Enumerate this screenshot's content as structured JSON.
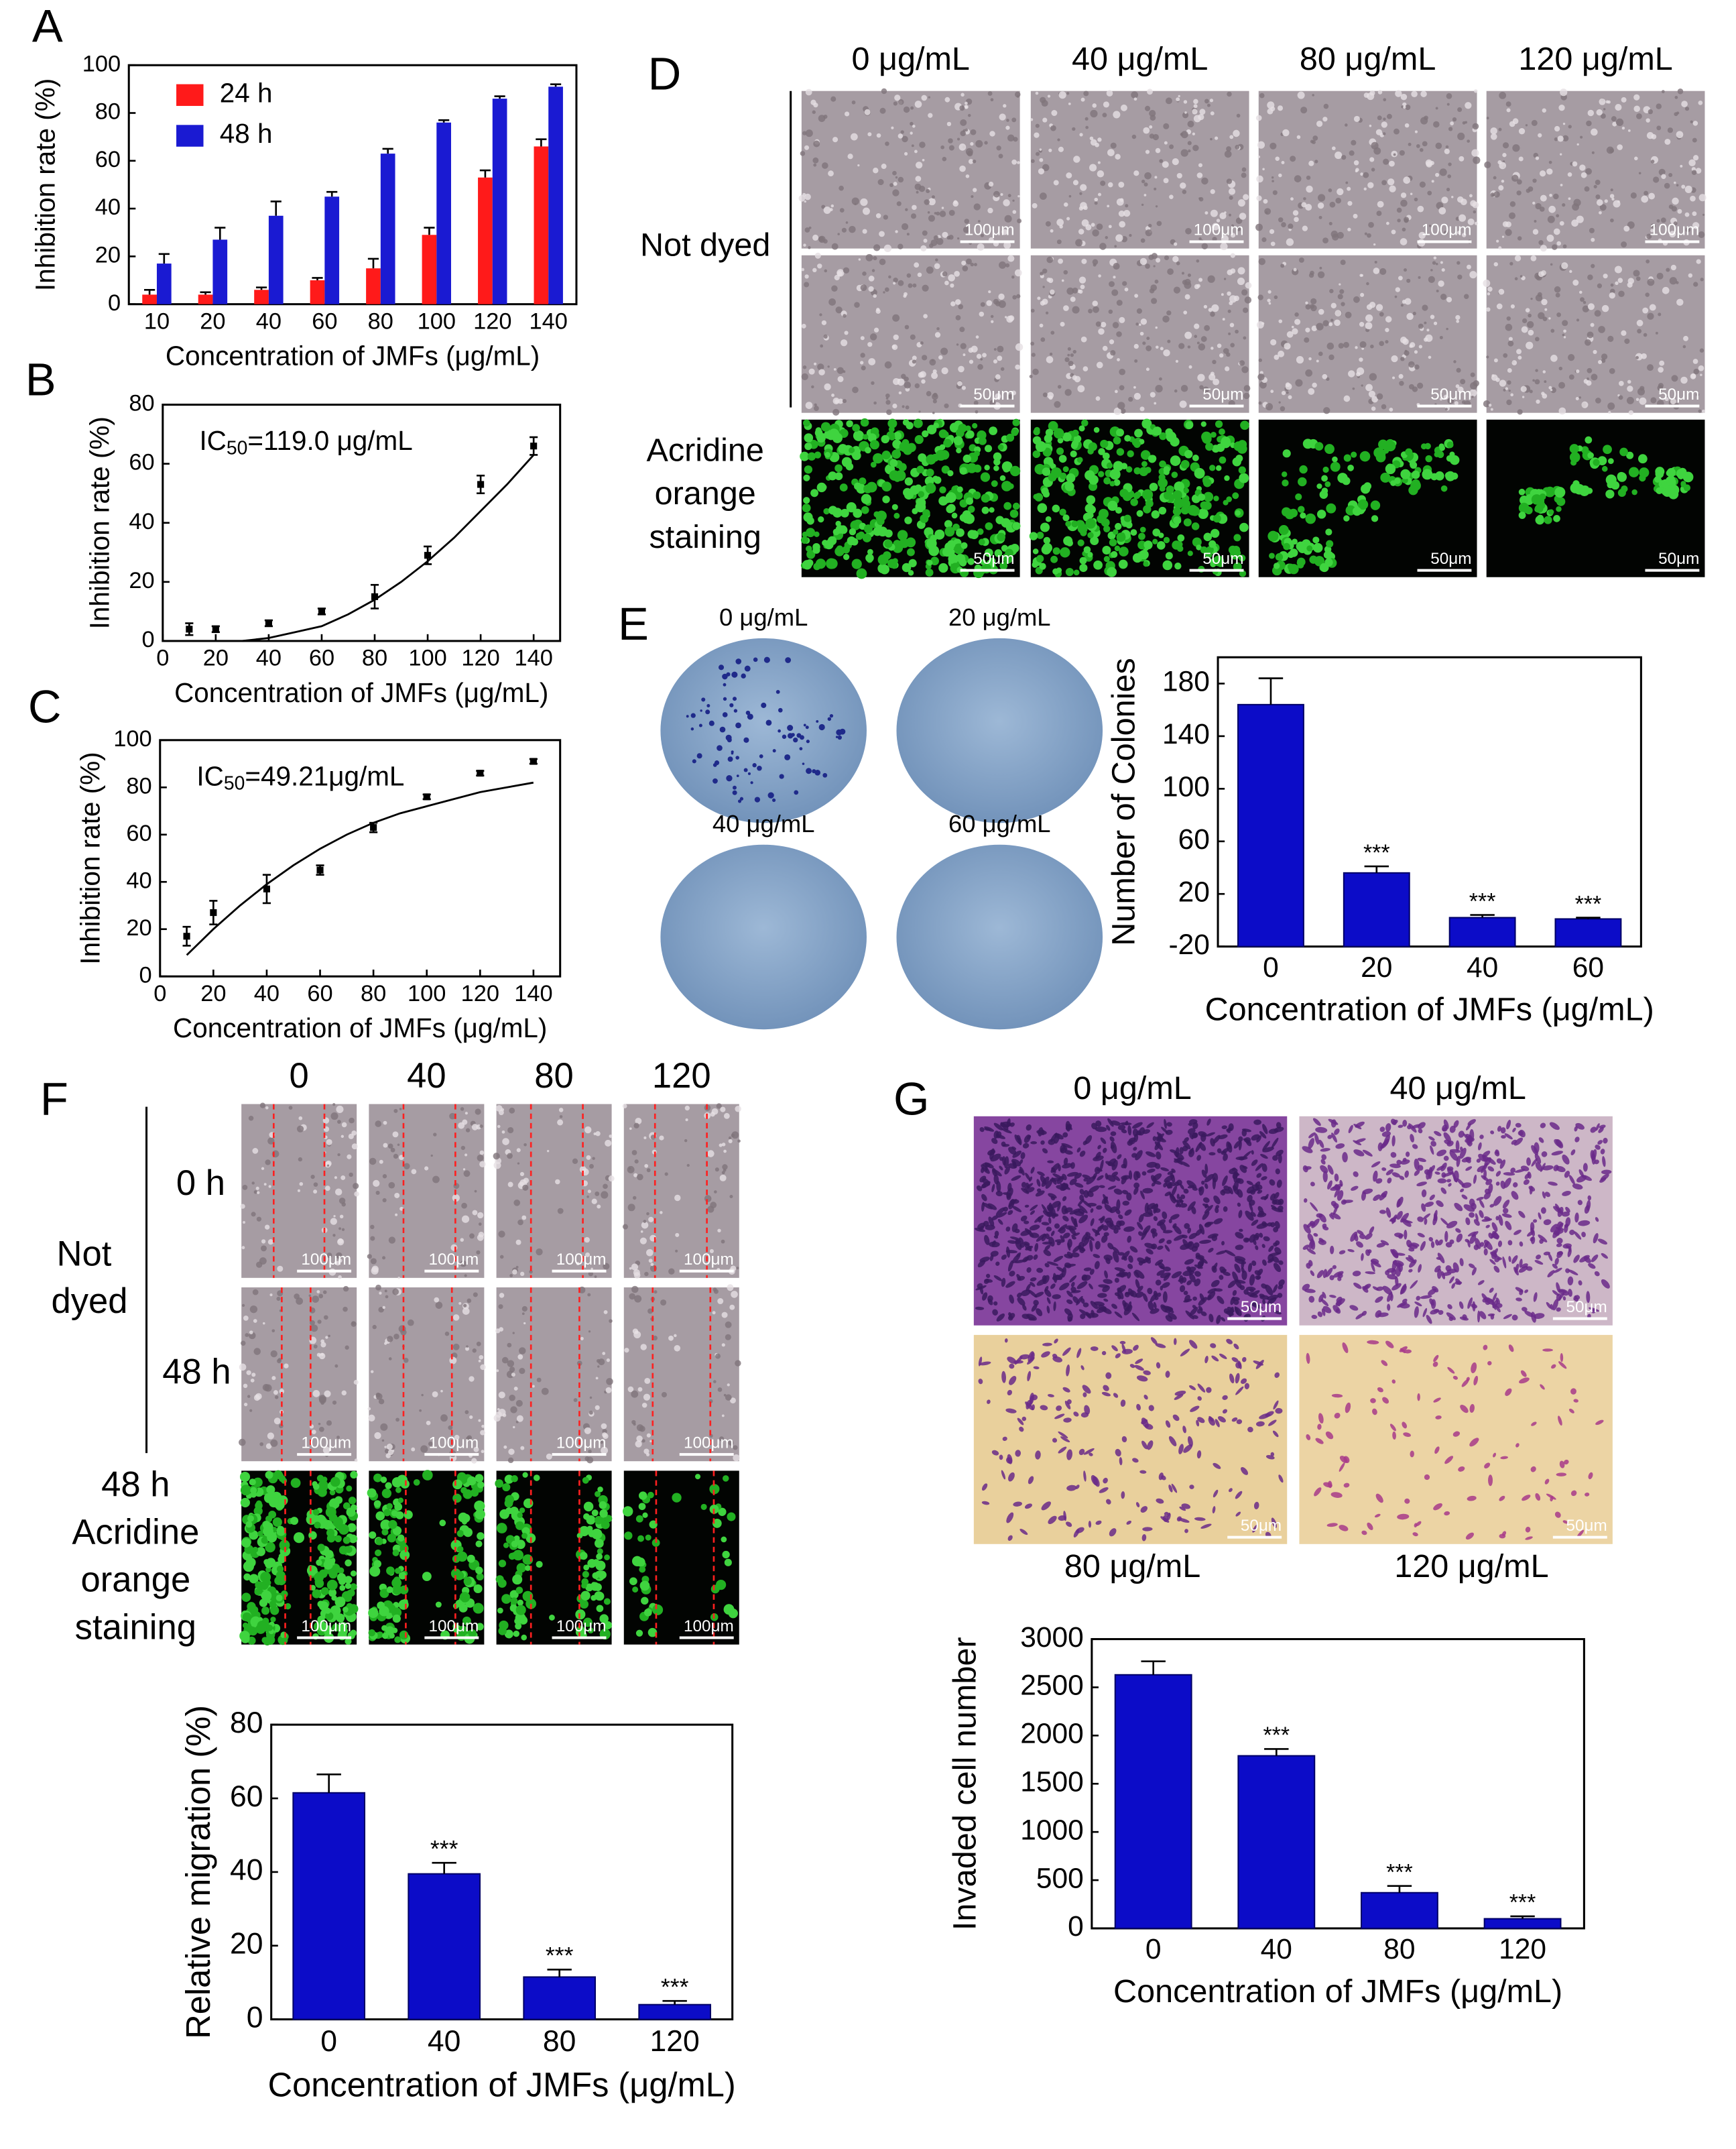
{
  "chart_data": [
    {
      "type": "bar",
      "categories": [
        "10",
        "20",
        "40",
        "60",
        "80",
        "100",
        "120",
        "140"
      ],
      "series": [
        {
          "name": "24 h",
          "color": "#ff1a1a",
          "values": [
            4,
            4,
            6,
            10,
            15,
            29,
            53,
            66
          ],
          "errors": [
            2,
            1,
            1,
            1,
            4,
            3,
            3,
            3
          ]
        },
        {
          "name": "48 h",
          "color": "#1a1ad2",
          "values": [
            17,
            27,
            37,
            45,
            63,
            76,
            86,
            91
          ],
          "errors": [
            4,
            5,
            6,
            2,
            2,
            1,
            1,
            1
          ]
        }
      ],
      "ylim": [
        0,
        100
      ],
      "yticks": [
        0,
        20,
        40,
        60,
        80,
        100
      ],
      "legend": "upper left",
      "grid": false,
      "x_label": "Concentration of JMFs (μg/mL)",
      "y_label": "Inhibition rate (%)"
    },
    {
      "type": "scatter",
      "x": [
        10,
        20,
        40,
        60,
        80,
        100,
        120,
        140
      ],
      "values": [
        4,
        4,
        6,
        10,
        15,
        29,
        53,
        66
      ],
      "errors": [
        2,
        1,
        1,
        1,
        4,
        3,
        3,
        3
      ],
      "color": "#000000",
      "fit": {
        "x": [
          30,
          40,
          50,
          60,
          70,
          80,
          90,
          100,
          110,
          120,
          130,
          140
        ],
        "values": [
          0,
          1,
          3,
          5,
          9,
          14,
          20,
          27,
          35,
          44,
          53,
          63
        ]
      },
      "annotation": [
        "IC",
        "50",
        "=119.0 μg/mL"
      ],
      "xlim": [
        0,
        150
      ],
      "xticks": [
        0,
        20,
        40,
        60,
        80,
        100,
        120,
        140
      ],
      "ylim": [
        0,
        80
      ],
      "yticks": [
        0,
        20,
        40,
        60,
        80
      ],
      "grid": false,
      "x_label": "Concentration of JMFs (μg/mL)",
      "y_label": "Inhibition rate (%)"
    },
    {
      "type": "scatter",
      "x": [
        10,
        20,
        40,
        60,
        80,
        100,
        120,
        140
      ],
      "values": [
        17,
        27,
        37,
        45,
        63,
        76,
        86,
        91
      ],
      "errors": [
        4,
        5,
        6,
        2,
        2,
        1,
        1,
        1
      ],
      "color": "#000000",
      "fit": {
        "x": [
          10,
          20,
          30,
          40,
          50,
          60,
          70,
          80,
          90,
          100,
          110,
          120,
          130,
          140
        ],
        "values": [
          9,
          20,
          30,
          39,
          47,
          54,
          60,
          65,
          69,
          72,
          75,
          78,
          80,
          82
        ]
      },
      "annotation": [
        "IC",
        "50",
        "=49.21μg/mL"
      ],
      "xlim": [
        0,
        150
      ],
      "xticks": [
        0,
        20,
        40,
        60,
        80,
        100,
        120,
        140
      ],
      "ylim": [
        0,
        100
      ],
      "yticks": [
        0,
        20,
        40,
        60,
        80,
        100
      ],
      "grid": false,
      "x_label": "Concentration of JMFs (μg/mL)",
      "y_label": "Inhibition rate (%)"
    },
    {
      "type": "bar",
      "categories": [
        "0",
        "20",
        "40",
        "60"
      ],
      "values": [
        164,
        36,
        2,
        1
      ],
      "errors": [
        20,
        5,
        2,
        1
      ],
      "annotations": [
        null,
        "***",
        "***",
        "***"
      ],
      "color": "#0c0cc8",
      "ylim": [
        -20,
        200
      ],
      "yticks": [
        -20,
        20,
        60,
        100,
        140,
        180
      ],
      "grid": false,
      "x_label": "Concentration of JMFs (μg/mL)",
      "y_label": "Number of Colonies"
    },
    {
      "type": "bar",
      "categories": [
        "0",
        "40",
        "80",
        "120"
      ],
      "values": [
        61.5,
        39.5,
        11.5,
        4
      ],
      "errors": [
        5,
        3,
        2,
        1
      ],
      "annotations": [
        null,
        "***",
        "***",
        "***"
      ],
      "color": "#0c0cc8",
      "ylim": [
        0,
        80
      ],
      "yticks": [
        0,
        20,
        40,
        60,
        80
      ],
      "grid": false,
      "x_label": "Concentration of JMFs (μg/mL)",
      "y_label": "Relative migration (%)"
    },
    {
      "type": "bar",
      "categories": [
        "0",
        "40",
        "80",
        "120"
      ],
      "values": [
        2630,
        1790,
        370,
        100
      ],
      "errors": [
        140,
        70,
        70,
        25
      ],
      "annotations": [
        null,
        "***",
        "***",
        "***"
      ],
      "color": "#0c0cc8",
      "ylim": [
        0,
        3000
      ],
      "yticks": [
        0,
        500,
        1000,
        1500,
        2000,
        2500,
        3000
      ],
      "grid": false,
      "x_label": "Concentration of JMFs (μg/mL)",
      "y_label": "Invaded cell number"
    }
  ],
  "figure": {
    "panel_labels": [
      "A",
      "B",
      "C",
      "D",
      "E",
      "F",
      "G"
    ],
    "D": {
      "columns": [
        "0 μg/mL",
        "40 μg/mL",
        "80 μg/mL",
        "120 μg/mL"
      ],
      "row_labels": [
        [
          "Not dyed"
        ],
        [
          "Acridine",
          "orange",
          "staining"
        ]
      ],
      "scale_bars": [
        [
          "100μm",
          "100μm",
          "100μm",
          "100μm"
        ],
        [
          "50μm",
          "50μm",
          "50μm",
          "50μm"
        ],
        [
          "50μm",
          "50μm",
          "50μm",
          "50μm"
        ]
      ]
    },
    "E": {
      "dish_labels": [
        "0 μg/mL",
        "20 μg/mL",
        "40 μg/mL",
        "60 μg/mL"
      ]
    },
    "F": {
      "columns": [
        "0",
        "40",
        "80",
        "120"
      ],
      "time_labels": [
        "0 h",
        "48 h"
      ],
      "row_labels": [
        [
          "Not",
          "dyed"
        ],
        [
          "48 h",
          "Acridine",
          "orange",
          "staining"
        ]
      ],
      "scale_bars": [
        [
          "100μm",
          "100μm",
          "100μm",
          "100μm"
        ],
        [
          "100μm",
          "100μm",
          "100μm",
          "100μm"
        ],
        [
          "100μm",
          "100μm",
          "100μm",
          "100μm"
        ]
      ]
    },
    "G": {
      "labels": [
        "0 μg/mL",
        "40 μg/mL",
        "80 μg/mL",
        "120 μg/mL"
      ],
      "scale_bars": [
        "50μm",
        "50μm",
        "50μm",
        "50μm"
      ]
    }
  }
}
